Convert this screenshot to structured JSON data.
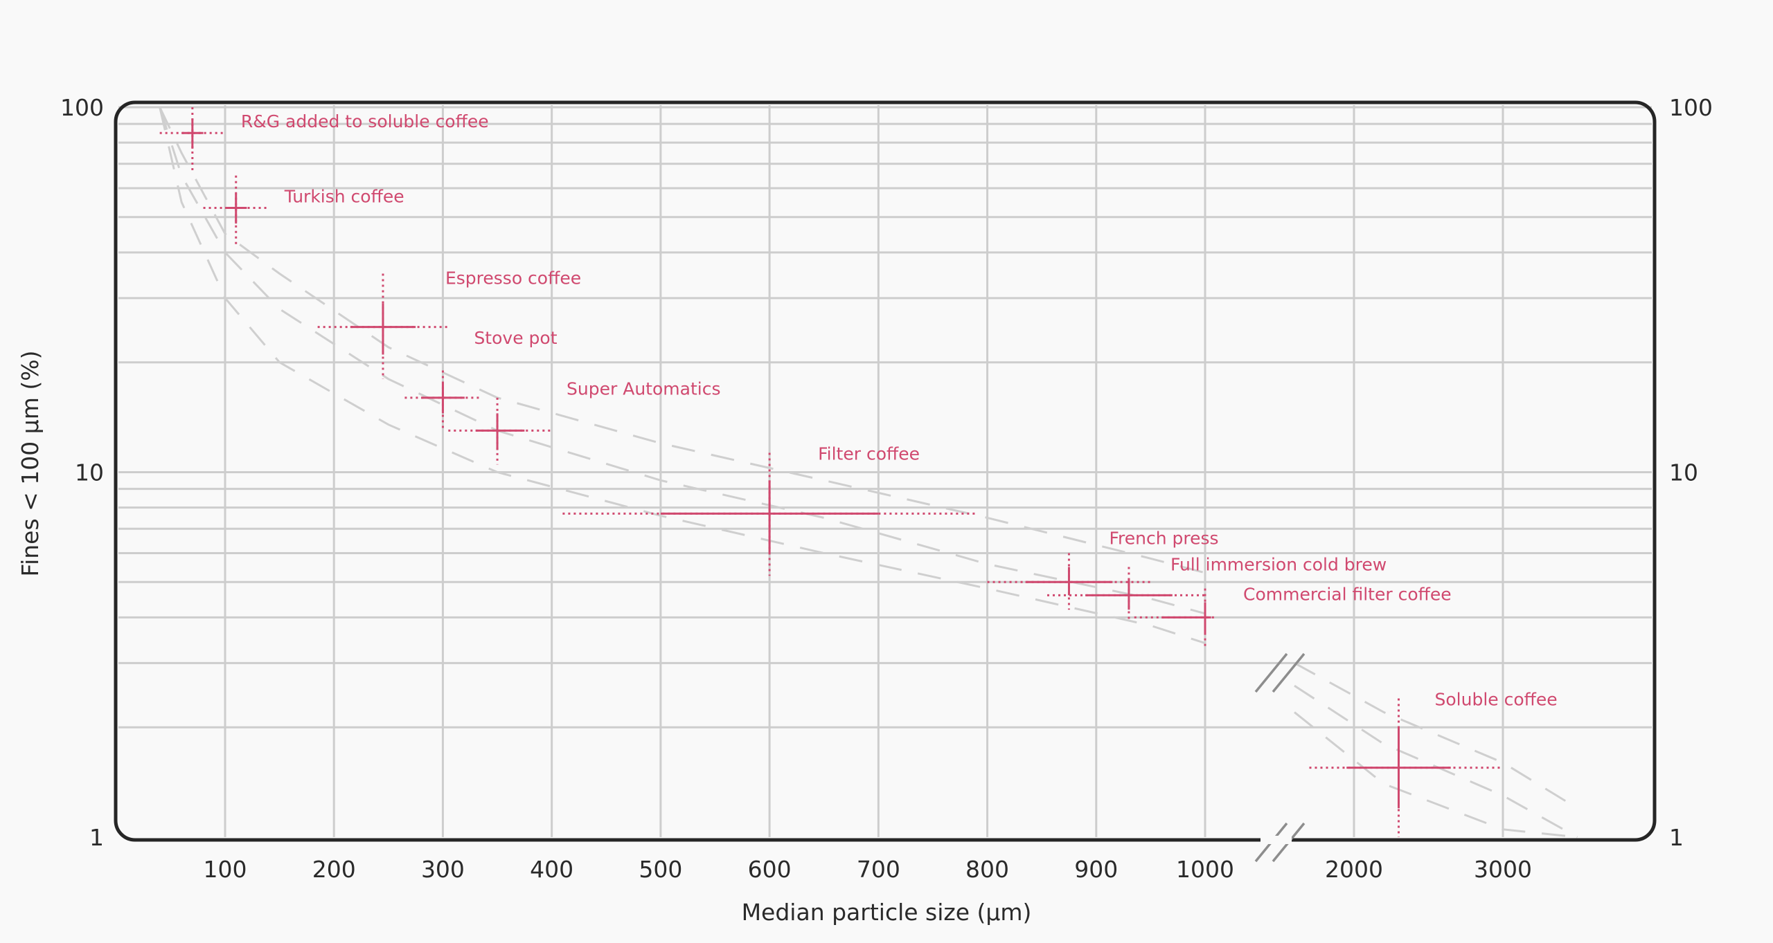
{
  "chart_data": {
    "type": "scatter",
    "title": "",
    "xlabel": "Median particle size (µm)",
    "ylabel": "Fines < 100 µm (%)",
    "yscale": "log",
    "ylim": [
      1,
      100
    ],
    "y_ticks": [
      "100",
      "10",
      "1"
    ],
    "y_ticks_right": [
      "100",
      "10",
      "1"
    ],
    "x_ticks": [
      "100",
      "200",
      "300",
      "400",
      "500",
      "600",
      "700",
      "800",
      "900",
      "1000",
      "2000",
      "3000"
    ],
    "x_axis_break": [
      1000,
      2000
    ],
    "grid": true,
    "points": [
      {
        "label": "R&G added to soluble coffee",
        "x": 70,
        "y": 85,
        "x_err_solid": [
          60,
          80
        ],
        "x_err_dotted": [
          40,
          100
        ],
        "y_err_solid": [
          77,
          93
        ],
        "y_err_dotted": [
          67,
          100
        ]
      },
      {
        "label": "Turkish coffee",
        "x": 110,
        "y": 53,
        "x_err_solid": [
          100,
          120
        ],
        "x_err_dotted": [
          80,
          140
        ],
        "y_err_solid": [
          48,
          58
        ],
        "y_err_dotted": [
          42,
          65
        ]
      },
      {
        "label": "Espresso coffee",
        "x": 245,
        "y": 25,
        "x_err_solid": [
          215,
          275
        ],
        "x_err_dotted": [
          185,
          305
        ],
        "y_err_solid": [
          21,
          29
        ],
        "y_err_dotted": [
          18,
          35
        ]
      },
      {
        "label": "Stove pot",
        "x": 300,
        "y": 16,
        "x_err_solid": [
          280,
          320
        ],
        "x_err_dotted": [
          265,
          335
        ],
        "y_err_solid": [
          14.5,
          17.5
        ],
        "y_err_dotted": [
          13,
          19
        ]
      },
      {
        "label": "Super Automatics",
        "x": 350,
        "y": 13,
        "x_err_solid": [
          330,
          375
        ],
        "x_err_dotted": [
          305,
          400
        ],
        "y_err_solid": [
          11.5,
          14.5
        ],
        "y_err_dotted": [
          10.5,
          16
        ]
      },
      {
        "label": "Filter coffee",
        "x": 600,
        "y": 7.7,
        "x_err_solid": [
          500,
          700
        ],
        "x_err_dotted": [
          410,
          790
        ],
        "y_err_solid": [
          6,
          9.5
        ],
        "y_err_dotted": [
          5.2,
          11.3
        ]
      },
      {
        "label": "French press",
        "x": 875,
        "y": 5,
        "x_err_solid": [
          835,
          915
        ],
        "x_err_dotted": [
          800,
          950
        ],
        "y_err_solid": [
          4.6,
          5.5
        ],
        "y_err_dotted": [
          4.2,
          6
        ]
      },
      {
        "label": "Full immersion cold brew",
        "x": 930,
        "y": 4.6,
        "x_err_solid": [
          890,
          970
        ],
        "x_err_dotted": [
          855,
          1000
        ],
        "y_err_solid": [
          4.2,
          5.1
        ],
        "y_err_dotted": [
          3.9,
          5.5
        ]
      },
      {
        "label": "Commercial filter coffee",
        "x": 1000,
        "y": 4,
        "x_err_solid": [
          960,
          1040
        ],
        "x_err_dotted": [
          935,
          1070
        ],
        "y_err_solid": [
          3.6,
          4.4
        ],
        "y_err_dotted": [
          3.3,
          4.8
        ]
      },
      {
        "label": "Soluble coffee",
        "x": 2300,
        "y": 1.55,
        "x_err_solid": [
          1950,
          2650
        ],
        "x_err_dotted": [
          1700,
          3000
        ],
        "y_err_solid": [
          1.2,
          2
        ],
        "y_err_dotted": [
          1,
          2.4
        ]
      }
    ],
    "trend_bands": [
      {
        "x": [
          40,
          60,
          100,
          150,
          250,
          350,
          500,
          650,
          800,
          950,
          1000
        ],
        "y": [
          100,
          75,
          45,
          35,
          22,
          16,
          12,
          9.5,
          7.5,
          5.8,
          5.3
        ]
      },
      {
        "x": [
          40,
          60,
          100,
          150,
          250,
          350,
          500,
          650,
          800,
          950,
          1000
        ],
        "y": [
          100,
          65,
          40,
          28,
          18,
          13,
          9.5,
          7.5,
          5.6,
          4.5,
          4.1
        ]
      },
      {
        "x": [
          40,
          60,
          100,
          150,
          250,
          350,
          500,
          650,
          800,
          950,
          1000
        ],
        "y": [
          100,
          55,
          30,
          20,
          13.5,
          10,
          7.6,
          6,
          4.8,
          3.8,
          3.4
        ]
      }
    ],
    "trend_bands_after_break": [
      {
        "x": [
          1600,
          2200,
          3000,
          3500
        ],
        "y": [
          3,
          2.2,
          1.6,
          1.2
        ]
      },
      {
        "x": [
          1600,
          2200,
          3000,
          3500
        ],
        "y": [
          2.6,
          1.8,
          1.3,
          1
        ]
      },
      {
        "x": [
          1600,
          2200,
          3000,
          3500
        ],
        "y": [
          2.2,
          1.4,
          1.05,
          1
        ]
      }
    ]
  }
}
